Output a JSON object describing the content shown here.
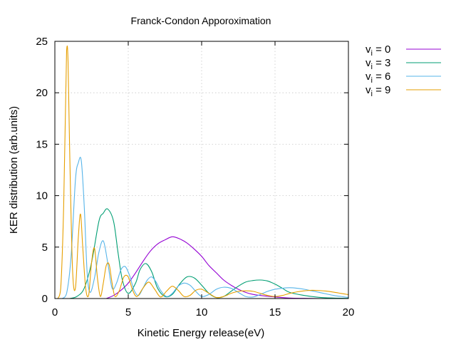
{
  "chart_data": {
    "type": "line",
    "title": "Franck-Condon Apporoximation",
    "xlabel": "Kinetic Energy release(eV)",
    "ylabel": "KER distribution (arb.units)",
    "xlim": [
      0,
      20
    ],
    "ylim": [
      0,
      25
    ],
    "xticks": [
      0,
      5,
      10,
      15,
      20
    ],
    "yticks": [
      0,
      5,
      10,
      15,
      20,
      25
    ],
    "grid": true,
    "legend": "outside-top-right",
    "series": [
      {
        "name": "v",
        "subscript": "i",
        "value_label": " = 0",
        "color": "#9400d3",
        "x": [
          3.5,
          4.0,
          4.5,
          5.0,
          5.5,
          6.0,
          6.5,
          7.0,
          7.5,
          8.0,
          8.5,
          9.0,
          9.5,
          10.0,
          10.5,
          11.0,
          11.5,
          12.0,
          12.5,
          13.0,
          13.5,
          14.0,
          15.0,
          16.0,
          17.0,
          18.0
        ],
        "y": [
          0.0,
          0.3,
          0.8,
          1.5,
          2.5,
          3.6,
          4.6,
          5.3,
          5.7,
          6.0,
          5.8,
          5.4,
          4.8,
          4.1,
          3.2,
          2.5,
          1.8,
          1.3,
          0.9,
          0.6,
          0.4,
          0.3,
          0.15,
          0.05,
          0.02,
          0.0
        ]
      },
      {
        "name": "v",
        "subscript": "i",
        "value_label": " = 3",
        "color": "#009e73",
        "x": [
          1.0,
          1.5,
          2.0,
          2.5,
          3.0,
          3.3,
          3.6,
          4.0,
          4.3,
          4.6,
          5.0,
          5.5,
          5.8,
          6.2,
          6.6,
          7.0,
          7.5,
          8.0,
          8.5,
          9.0,
          9.5,
          10.0,
          10.5,
          11.0,
          11.5,
          12.0,
          12.5,
          13.0,
          13.5,
          14.0,
          14.5,
          15.0,
          15.5,
          16.0,
          17.0,
          18.0,
          19.0,
          20.0
        ],
        "y": [
          0.0,
          0.2,
          1.0,
          3.5,
          7.5,
          8.3,
          8.7,
          7.5,
          4.5,
          1.8,
          0.5,
          1.5,
          2.8,
          3.4,
          2.6,
          1.0,
          0.2,
          0.4,
          1.4,
          2.1,
          2.0,
          1.3,
          0.5,
          0.1,
          0.2,
          0.7,
          1.2,
          1.6,
          1.75,
          1.8,
          1.7,
          1.4,
          1.0,
          0.6,
          0.3,
          0.12,
          0.05,
          0.02
        ]
      },
      {
        "name": "v",
        "subscript": "i",
        "value_label": " = 6",
        "color": "#56b4e9",
        "x": [
          0.5,
          0.8,
          1.1,
          1.4,
          1.6,
          1.8,
          2.0,
          2.2,
          2.4,
          2.7,
          3.0,
          3.3,
          3.6,
          3.9,
          4.2,
          4.5,
          4.8,
          5.1,
          5.4,
          5.7,
          6.0,
          6.3,
          6.6,
          6.9,
          7.2,
          7.6,
          8.0,
          8.4,
          8.8,
          9.2,
          9.6,
          10.0,
          10.5,
          11.0,
          11.5,
          12.0,
          12.5,
          13.0,
          13.5,
          14.0,
          14.5,
          15.0,
          15.5,
          16.0,
          16.5,
          17.0,
          17.5,
          18.0,
          18.5,
          19.0,
          19.5,
          20.0
        ],
        "y": [
          0.0,
          0.5,
          4.0,
          11.5,
          13.2,
          13.4,
          9.0,
          2.5,
          0.6,
          2.0,
          4.5,
          5.6,
          3.5,
          1.0,
          1.5,
          2.8,
          3.1,
          2.2,
          0.8,
          0.3,
          1.0,
          1.8,
          2.1,
          1.6,
          0.8,
          0.2,
          0.5,
          1.2,
          1.5,
          1.3,
          0.7,
          0.2,
          0.4,
          0.9,
          1.1,
          1.0,
          0.6,
          0.2,
          0.15,
          0.4,
          0.7,
          0.9,
          1.0,
          1.05,
          1.0,
          0.9,
          0.75,
          0.6,
          0.45,
          0.3,
          0.2,
          0.1
        ]
      },
      {
        "name": "v",
        "subscript": "i",
        "value_label": " = 9",
        "color": "#e69f00",
        "x": [
          0.2,
          0.4,
          0.6,
          0.8,
          0.9,
          1.0,
          1.2,
          1.4,
          1.6,
          1.75,
          1.9,
          2.1,
          2.3,
          2.5,
          2.7,
          2.9,
          3.1,
          3.3,
          3.5,
          3.7,
          3.9,
          4.1,
          4.4,
          4.7,
          5.0,
          5.3,
          5.6,
          6.0,
          6.4,
          6.8,
          7.2,
          7.6,
          8.0,
          8.4,
          8.8,
          9.2,
          9.6,
          10.0,
          10.5,
          11.0,
          11.5,
          12.0,
          12.5,
          13.0,
          13.5,
          14.0,
          14.5,
          15.0,
          15.5,
          16.0,
          16.5,
          17.0,
          17.5,
          18.0,
          18.5,
          19.0,
          19.5,
          20.0
        ],
        "y": [
          0.0,
          1.0,
          9.0,
          24.1,
          23.0,
          15.0,
          3.0,
          1.0,
          6.0,
          8.2,
          5.0,
          1.0,
          0.3,
          3.5,
          4.9,
          2.0,
          0.2,
          1.5,
          3.2,
          3.3,
          1.5,
          0.2,
          0.8,
          2.1,
          2.1,
          0.8,
          0.2,
          1.0,
          1.6,
          0.9,
          0.15,
          0.7,
          1.2,
          0.8,
          0.2,
          0.3,
          0.8,
          0.9,
          0.5,
          0.1,
          0.2,
          0.5,
          0.7,
          0.75,
          0.7,
          0.5,
          0.3,
          0.2,
          0.3,
          0.5,
          0.65,
          0.75,
          0.8,
          0.78,
          0.72,
          0.62,
          0.5,
          0.38
        ]
      }
    ]
  }
}
